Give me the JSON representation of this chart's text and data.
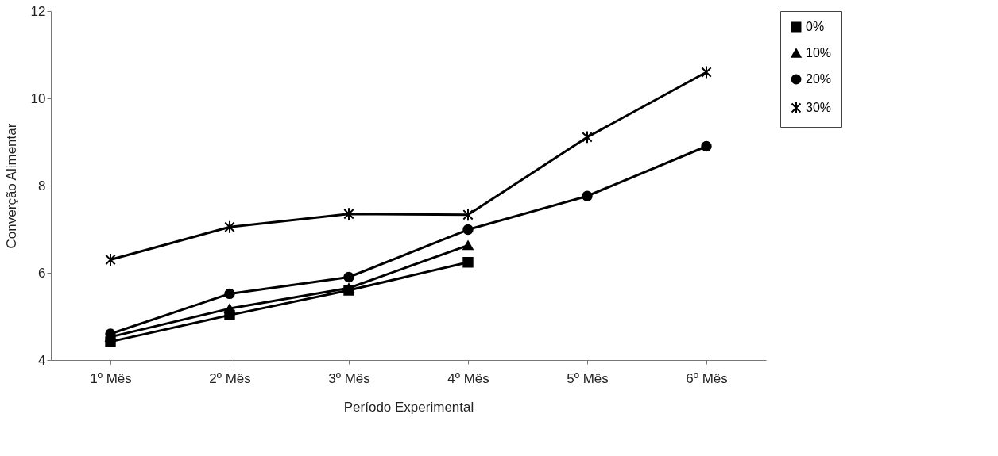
{
  "chart_data": {
    "type": "line",
    "xlabel": "Período Experimental",
    "ylabel": "Converção Alimentar",
    "categories": [
      "1º Mês",
      "2º Mês",
      "3º Mês",
      "4º Mês",
      "5º Mês",
      "6º Mês"
    ],
    "ylim": [
      4,
      12
    ],
    "yticks": [
      4,
      6,
      8,
      10,
      12
    ],
    "grid": false,
    "legend": "right",
    "line_style": "solid",
    "series": [
      {
        "name": "0%",
        "color": "#000000",
        "marker": "square",
        "values": [
          4.42,
          5.03,
          5.6,
          6.24,
          null,
          null
        ]
      },
      {
        "name": "10%",
        "color": "#000000",
        "marker": "triangle",
        "values": [
          4.53,
          5.18,
          5.65,
          6.63,
          null,
          null
        ]
      },
      {
        "name": "20%",
        "color": "#000000",
        "marker": "circle",
        "values": [
          4.6,
          5.52,
          5.9,
          6.99,
          7.76,
          8.9
        ]
      },
      {
        "name": "30%",
        "color": "#000000",
        "marker": "cross",
        "values": [
          6.3,
          7.05,
          7.35,
          7.33,
          9.11,
          10.6
        ]
      }
    ]
  }
}
